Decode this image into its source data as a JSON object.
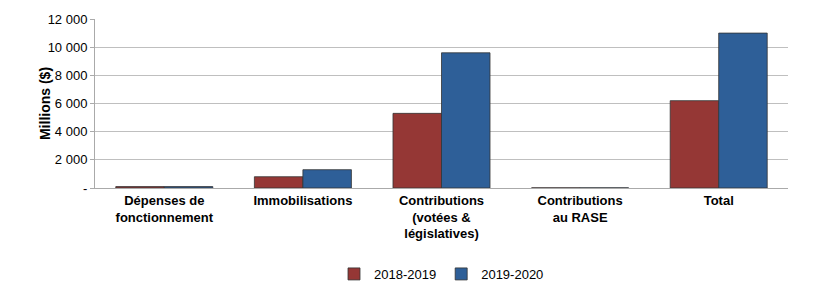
{
  "chart_data": {
    "type": "bar",
    "y_label": "Millions ($)",
    "categories": [
      "Dépenses de fonctionnement",
      "Immobilisations",
      "Contributions (votées & législatives)",
      "Contributions au RASE",
      "Total"
    ],
    "series": [
      {
        "name": "2018-2019",
        "color": "#953735",
        "values": [
          100,
          800,
          5300,
          10,
          6200
        ]
      },
      {
        "name": "2019-2020",
        "color": "#2e5f98",
        "values": [
          100,
          1300,
          9600,
          10,
          11000
        ]
      }
    ],
    "ylim": [
      0,
      12000
    ],
    "yticks": [
      {
        "value": 0,
        "label": "-"
      },
      {
        "value": 2000,
        "label": "2 000"
      },
      {
        "value": 4000,
        "label": "4 000"
      },
      {
        "value": 6000,
        "label": "6 000"
      },
      {
        "value": 8000,
        "label": "8 000"
      },
      {
        "value": 10000,
        "label": "10 000"
      },
      {
        "value": 12000,
        "label": "12 000"
      }
    ],
    "grid": true,
    "legend": "bottom"
  }
}
